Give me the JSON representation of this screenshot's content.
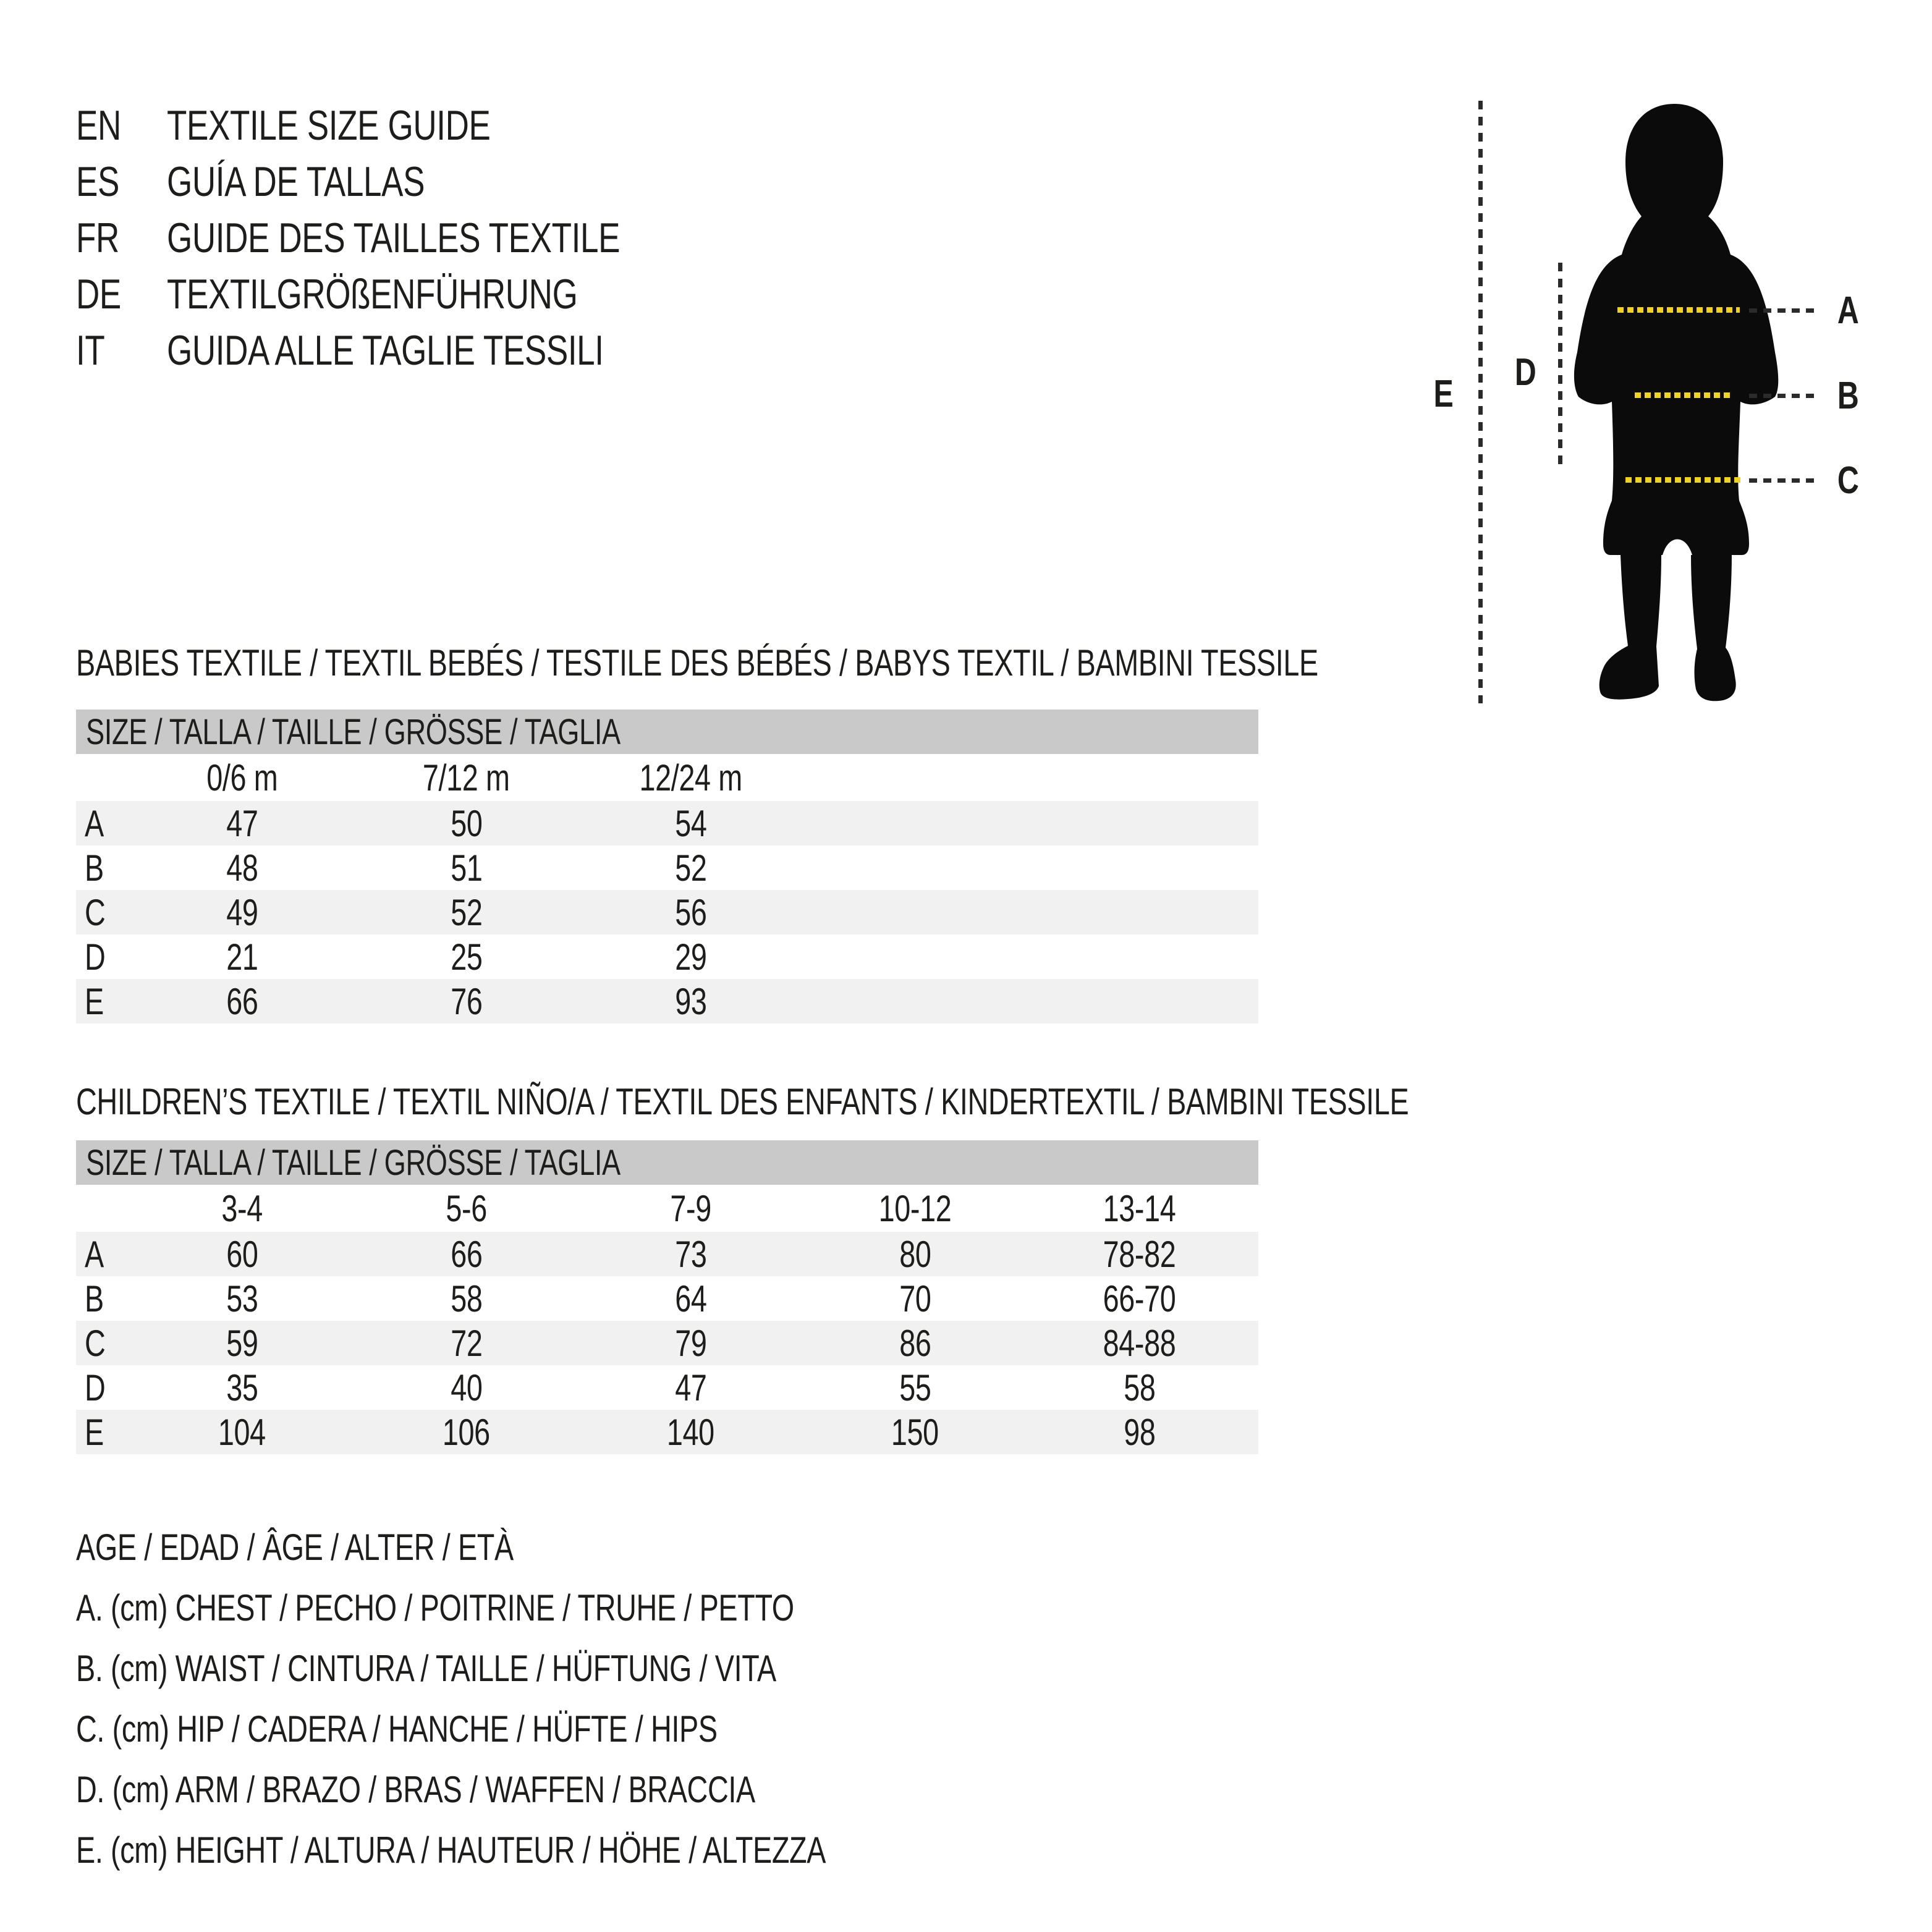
{
  "colors": {
    "ink": "#1d1d1b",
    "table_header_bg": "#c9c9c9",
    "row_stripe_bg": "#f1f1f1",
    "measure_yellow": "#f0d226",
    "dash_dark": "#2b2b2b",
    "silhouette": "#0b0b0b"
  },
  "languages": [
    {
      "code": "EN",
      "title": "TEXTILE SIZE GUIDE"
    },
    {
      "code": "ES",
      "title": "GUÍA DE TALLAS"
    },
    {
      "code": "FR",
      "title": "GUIDE DES TAILLES TEXTILE"
    },
    {
      "code": "DE",
      "title": "TEXTILGRÖßENFÜHRUNG"
    },
    {
      "code": "IT",
      "title": "GUIDA ALLE TAGLIE TESSILI"
    }
  ],
  "figure": {
    "labels": [
      "A",
      "B",
      "C",
      "D",
      "E"
    ]
  },
  "babies_table": {
    "section_title": "BABIES TEXTILE / TEXTIL BEBÉS / TESTILE DES BÉBÉS / BABYS TEXTIL / BAMBINI TESSILE",
    "header": "SIZE / TALLA / TAILLE / GRÖSSE / TAGLIA",
    "columns": [
      "0/6 m",
      "7/12 m",
      "12/24 m"
    ],
    "rows": [
      {
        "label": "A",
        "values": [
          "47",
          "50",
          "54"
        ]
      },
      {
        "label": "B",
        "values": [
          "48",
          "51",
          "52"
        ]
      },
      {
        "label": "C",
        "values": [
          "49",
          "52",
          "56"
        ]
      },
      {
        "label": "D",
        "values": [
          "21",
          "25",
          "29"
        ]
      },
      {
        "label": "E",
        "values": [
          "66",
          "76",
          "93"
        ]
      }
    ]
  },
  "children_table": {
    "section_title": "CHILDREN’S TEXTILE / TEXTIL NIÑO/A / TEXTIL DES ENFANTS / KINDERTEXTIL / BAMBINI TESSILE",
    "header": "SIZE / TALLA / TAILLE / GRÖSSE / TAGLIA",
    "columns": [
      "3-4",
      "5-6",
      "7-9",
      "10-12",
      "13-14"
    ],
    "rows": [
      {
        "label": "A",
        "values": [
          "60",
          "66",
          "73",
          "80",
          "78-82"
        ]
      },
      {
        "label": "B",
        "values": [
          "53",
          "58",
          "64",
          "70",
          "66-70"
        ]
      },
      {
        "label": "C",
        "values": [
          "59",
          "72",
          "79",
          "86",
          "84-88"
        ]
      },
      {
        "label": "D",
        "values": [
          "35",
          "40",
          "47",
          "55",
          "58"
        ]
      },
      {
        "label": "E",
        "values": [
          "104",
          "106",
          "140",
          "150",
          "98"
        ]
      }
    ]
  },
  "legend": [
    "AGE / EDAD / ÂGE / ALTER / ETÀ",
    "A. (cm) CHEST / PECHO / POITRINE / TRUHE / PETTO",
    "B. (cm) WAIST / CINTURA / TAILLE / HÜFTUNG / VITA",
    "C. (cm) HIP / CADERA / HANCHE / HÜFTE / HIPS",
    "D. (cm) ARM / BRAZO / BRAS / WAFFEN / BRACCIA",
    "E. (cm) HEIGHT / ALTURA / HAUTEUR / HÖHE / ALTEZZA"
  ]
}
